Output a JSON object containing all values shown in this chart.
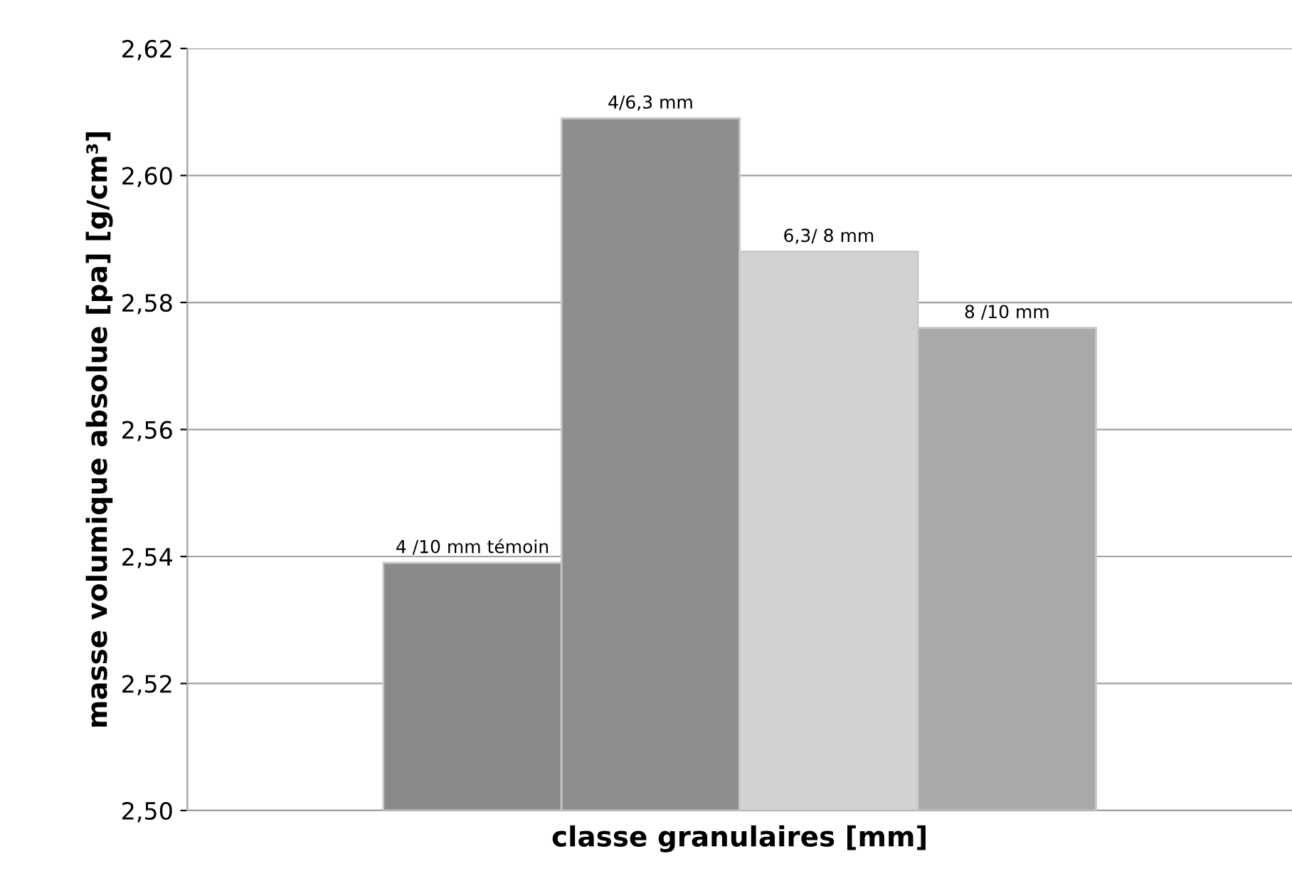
{
  "chart_data": {
    "type": "bar",
    "xlabel": "classe granulaires [mm]",
    "ylabel": "masse volumique absolue [pa] [g/cm³]",
    "categories": [
      null
    ],
    "series": [
      {
        "name": "4 /10 mm témoin",
        "color": "#8a8a8a",
        "values": [
          2.539
        ]
      },
      {
        "name": "4/6,3 mm",
        "color": "#8e8e8e",
        "values": [
          2.609
        ]
      },
      {
        "name": "6,3/ 8 mm",
        "color": "#d2d2d2",
        "values": [
          2.588
        ]
      },
      {
        "name": "8 /10 mm",
        "color": "#a9a9a9",
        "values": [
          2.576
        ]
      }
    ],
    "ylim": [
      2.5,
      2.62
    ],
    "yticks": [
      {
        "value": 2.5,
        "label": "2,50"
      },
      {
        "value": 2.52,
        "label": "2,52"
      },
      {
        "value": 2.54,
        "label": "2,54"
      },
      {
        "value": 2.56,
        "label": "2,56"
      },
      {
        "value": 2.58,
        "label": "2,58"
      },
      {
        "value": 2.6,
        "label": "2,60"
      },
      {
        "value": 2.62,
        "label": "2,62"
      }
    ],
    "grid": "y",
    "legend": false
  }
}
